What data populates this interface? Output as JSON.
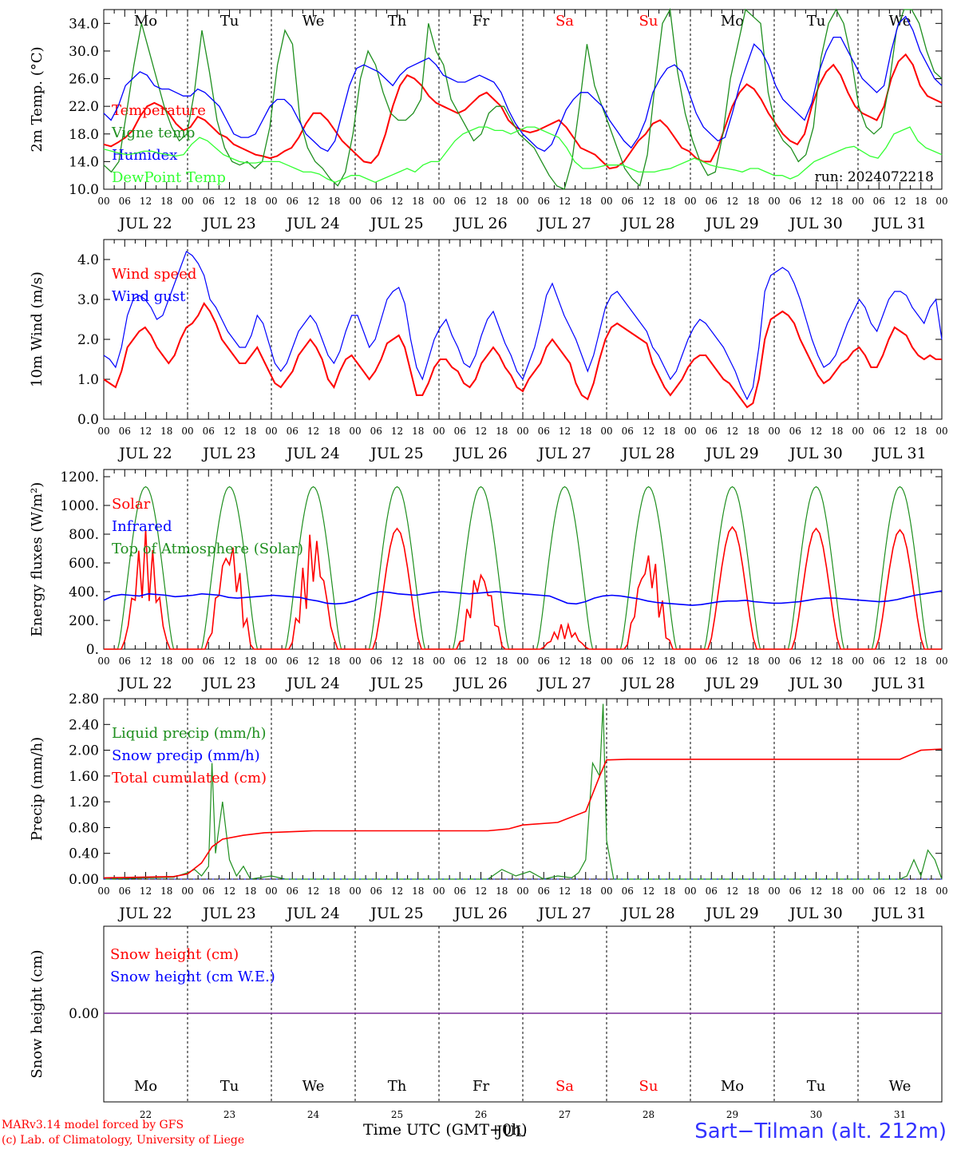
{
  "chart_data": [
    {
      "type": "line",
      "panel_id": "temp",
      "ylabel": "2m Temp. (°C)",
      "ylim": [
        10,
        36
      ],
      "yticks": [
        "10.0",
        "14.0",
        "18.0",
        "22.0",
        "26.0",
        "30.0",
        "34.0"
      ],
      "annotation": "run: 2024072218",
      "series": [
        {
          "name": "Temperature",
          "color": "#ff0000",
          "values": [
            16.5,
            16.2,
            16.8,
            17.5,
            18.5,
            20.5,
            22,
            22.5,
            22,
            21,
            19.5,
            18.5,
            19,
            20.5,
            20,
            19,
            18,
            17.5,
            16.5,
            16,
            15.5,
            15,
            14.8,
            14.5,
            14.8,
            15.5,
            16,
            17.5,
            19.5,
            21,
            21,
            20,
            18.5,
            17,
            16,
            15,
            14,
            13.8,
            15,
            18,
            22,
            25,
            26.5,
            26,
            25,
            23.5,
            22.5,
            22,
            21.5,
            21,
            21.5,
            22.5,
            23.5,
            24,
            23,
            22,
            20,
            19,
            18.5,
            18.2,
            18.5,
            19,
            19.5,
            20,
            19,
            17.5,
            16,
            15.5,
            15,
            14,
            13,
            13.2,
            14,
            15.5,
            17,
            18,
            19.5,
            20,
            19,
            17.5,
            16,
            15.5,
            14.5,
            14,
            14,
            16,
            19,
            22,
            24,
            25.2,
            24.5,
            23,
            21,
            19.5,
            18,
            17,
            16.5,
            18,
            22,
            25,
            27,
            28,
            26.5,
            24,
            22,
            21,
            20.5,
            20,
            22,
            26,
            28.5,
            29.5,
            28,
            25,
            23.5,
            23,
            22.5
          ]
        },
        {
          "name": "Vigne temp",
          "color": "#1f8f1f",
          "values": [
            13.5,
            12.5,
            14,
            21,
            28,
            34,
            30,
            26,
            22,
            19,
            17,
            18,
            24,
            33,
            27,
            20,
            16,
            14,
            13.5,
            14,
            13,
            14,
            19,
            28,
            33,
            31,
            20,
            16,
            14,
            13,
            11.5,
            10.5,
            12.5,
            18,
            26,
            30,
            28,
            24,
            21,
            20,
            20,
            21,
            23,
            34,
            30,
            28,
            23,
            21,
            19,
            17,
            18,
            21,
            22,
            22,
            20,
            18,
            17,
            16,
            14,
            12,
            10.5,
            10,
            14,
            22,
            31,
            25,
            22,
            19,
            16,
            13,
            11.5,
            10.5,
            15,
            25,
            34,
            36,
            27,
            21,
            17,
            14,
            12,
            12.5,
            18,
            26,
            31,
            36,
            35,
            34,
            24,
            19,
            17,
            16,
            14,
            15,
            19,
            29,
            34,
            36,
            34,
            29,
            22,
            19,
            18,
            19,
            25,
            33,
            36,
            36,
            34,
            30,
            27,
            26
          ]
        },
        {
          "name": "Humidex",
          "color": "#0000ff",
          "values": [
            21,
            20,
            22,
            25,
            26,
            27,
            26.5,
            25,
            24.5,
            24.5,
            24,
            23.5,
            23.5,
            24.5,
            24,
            23,
            22,
            20,
            18,
            17.5,
            17.5,
            18,
            20,
            22,
            23,
            23,
            22,
            20,
            18,
            17,
            16,
            15.5,
            17,
            21,
            25,
            27.5,
            28,
            27.5,
            27,
            26,
            25,
            26.5,
            27.5,
            28,
            28.5,
            29,
            28,
            26.5,
            26,
            25.5,
            25.5,
            26,
            26.5,
            26,
            25.5,
            24,
            21.5,
            19.5,
            18,
            17,
            16,
            15.5,
            16.5,
            19,
            21.5,
            23,
            24,
            24,
            23,
            22,
            20,
            18.5,
            17,
            16,
            17.5,
            20,
            24,
            26,
            27.5,
            28,
            27,
            24,
            21,
            19,
            18,
            17,
            17.5,
            21,
            25,
            28,
            31,
            30,
            28,
            25,
            23,
            22,
            21,
            20,
            22.5,
            27,
            30,
            32,
            32,
            30,
            28,
            26,
            25,
            24,
            25,
            30,
            34,
            35,
            33,
            30,
            28,
            26,
            25
          ]
        },
        {
          "name": "DewPoint Temp",
          "color": "#33ff33",
          "values": [
            15.8,
            15.5,
            15.2,
            15,
            15.2,
            15.5,
            15.5,
            15.2,
            15,
            14.8,
            15,
            16.5,
            17.5,
            17,
            16,
            15,
            14.5,
            14,
            13.8,
            13.8,
            14,
            14,
            14,
            13.5,
            13,
            12.5,
            12.5,
            12.2,
            11.5,
            11,
            11.5,
            12,
            12,
            11.5,
            11,
            11.5,
            12,
            12.5,
            13,
            12.5,
            13.5,
            14,
            14,
            15.5,
            17,
            18,
            18.5,
            19,
            19,
            18.5,
            18.5,
            18,
            18.5,
            19,
            19,
            18.5,
            18,
            17.5,
            16,
            14,
            13,
            13,
            13.2,
            13.5,
            13.5,
            13.5,
            13,
            12.5,
            12.5,
            12.5,
            12.8,
            13,
            13.5,
            14,
            14.5,
            14,
            13.5,
            13.2,
            13,
            12.8,
            12.5,
            13,
            13,
            12.5,
            12,
            12,
            11.5,
            12,
            13,
            14,
            14.5,
            15,
            15.5,
            16,
            16.2,
            15.5,
            14.8,
            14.5,
            16,
            18,
            18.5,
            19,
            17,
            16,
            15.5,
            15
          ]
        }
      ]
    },
    {
      "type": "line",
      "panel_id": "wind",
      "ylabel": "10m Wind (m/s)",
      "ylim": [
        0,
        4.5
      ],
      "yticks": [
        "0.0",
        "1.0",
        "2.0",
        "3.0",
        "4.0"
      ],
      "series": [
        {
          "name": "Wind speed",
          "color": "#ff0000",
          "values": [
            1.0,
            0.9,
            0.8,
            1.2,
            1.8,
            2.0,
            2.2,
            2.3,
            2.1,
            1.8,
            1.6,
            1.4,
            1.6,
            2.0,
            2.3,
            2.4,
            2.6,
            2.9,
            2.7,
            2.4,
            2.0,
            1.8,
            1.6,
            1.4,
            1.4,
            1.6,
            1.8,
            1.5,
            1.2,
            0.9,
            0.8,
            1.0,
            1.2,
            1.6,
            1.8,
            2.0,
            1.8,
            1.5,
            1.0,
            0.8,
            1.2,
            1.5,
            1.6,
            1.4,
            1.2,
            1.0,
            1.2,
            1.5,
            1.9,
            2.0,
            2.1,
            1.8,
            1.2,
            0.6,
            0.6,
            0.9,
            1.3,
            1.5,
            1.5,
            1.3,
            1.2,
            0.9,
            0.8,
            1.0,
            1.4,
            1.6,
            1.8,
            1.6,
            1.3,
            1.1,
            0.8,
            0.7,
            1.0,
            1.2,
            1.4,
            1.8,
            2.0,
            1.8,
            1.6,
            1.4,
            0.9,
            0.6,
            0.5,
            0.9,
            1.5,
            2.0,
            2.3,
            2.4,
            2.3,
            2.2,
            2.1,
            2.0,
            1.9,
            1.4,
            1.1,
            0.8,
            0.6,
            0.8,
            1.0,
            1.3,
            1.5,
            1.6,
            1.6,
            1.4,
            1.2,
            1.0,
            0.9,
            0.7,
            0.5,
            0.3,
            0.4,
            1.0,
            2.0,
            2.5,
            2.6,
            2.7,
            2.6,
            2.4,
            2.0,
            1.7,
            1.4,
            1.1,
            0.9,
            1.0,
            1.2,
            1.4,
            1.5,
            1.7,
            1.8,
            1.6,
            1.3,
            1.3,
            1.6,
            2.0,
            2.3,
            2.2,
            2.1,
            1.8,
            1.6,
            1.5,
            1.6,
            1.5,
            1.5
          ]
        },
        {
          "name": "Wind gust",
          "color": "#0000ff",
          "values": [
            1.6,
            1.5,
            1.3,
            1.8,
            2.6,
            3.0,
            3.1,
            3.0,
            2.8,
            2.5,
            2.6,
            3.0,
            3.4,
            3.8,
            4.2,
            4.1,
            3.9,
            3.6,
            3.0,
            2.8,
            2.5,
            2.2,
            2.0,
            1.8,
            1.8,
            2.1,
            2.6,
            2.4,
            1.9,
            1.4,
            1.2,
            1.4,
            1.8,
            2.2,
            2.4,
            2.6,
            2.4,
            2.0,
            1.6,
            1.4,
            1.7,
            2.2,
            2.6,
            2.6,
            2.2,
            1.8,
            2.0,
            2.5,
            3.0,
            3.2,
            3.3,
            2.9,
            2.0,
            1.3,
            1.0,
            1.5,
            2.0,
            2.3,
            2.5,
            2.1,
            1.8,
            1.4,
            1.3,
            1.6,
            2.1,
            2.5,
            2.7,
            2.3,
            1.9,
            1.6,
            1.2,
            1.0,
            1.4,
            1.8,
            2.4,
            3.1,
            3.4,
            3.0,
            2.6,
            2.3,
            2.0,
            1.6,
            1.2,
            1.6,
            2.2,
            2.8,
            3.1,
            3.2,
            3.0,
            2.8,
            2.6,
            2.4,
            2.2,
            1.8,
            1.6,
            1.3,
            1.0,
            1.2,
            1.6,
            2.0,
            2.3,
            2.5,
            2.4,
            2.2,
            2.0,
            1.8,
            1.5,
            1.2,
            0.8,
            0.5,
            0.8,
            1.8,
            3.2,
            3.6,
            3.7,
            3.8,
            3.7,
            3.4,
            3.0,
            2.5,
            2.0,
            1.6,
            1.3,
            1.4,
            1.6,
            2.0,
            2.4,
            2.7,
            3.0,
            2.8,
            2.4,
            2.2,
            2.6,
            3.0,
            3.2,
            3.2,
            3.1,
            2.8,
            2.6,
            2.4,
            2.8,
            3.0,
            2.0
          ]
        }
      ]
    },
    {
      "type": "line",
      "panel_id": "flux",
      "ylabel": "Energy fluxes (W/m²)",
      "ylim": [
        0,
        1250
      ],
      "yticks": [
        "0.",
        "200.",
        "400.",
        "600.",
        "800.",
        "1000.",
        "1200."
      ],
      "series": [
        {
          "name": "Solar",
          "color": "#ff0000",
          "days_peak": [
            830,
            800,
            840,
            840,
            600,
            180,
            720,
            850,
            840,
            830
          ]
        },
        {
          "name": "Infrared",
          "color": "#0000ff",
          "values": [
            340,
            370,
            380,
            375,
            370,
            385,
            380,
            375,
            365,
            370,
            375,
            385,
            380,
            375,
            360,
            355,
            360,
            365,
            370,
            375,
            370,
            365,
            360,
            345,
            335,
            320,
            315,
            320,
            335,
            360,
            385,
            400,
            395,
            385,
            380,
            375,
            385,
            395,
            400,
            395,
            390,
            385,
            390,
            395,
            400,
            395,
            390,
            385,
            380,
            375,
            370,
            345,
            320,
            315,
            330,
            355,
            370,
            375,
            370,
            360,
            350,
            335,
            325,
            320,
            315,
            310,
            305,
            310,
            320,
            330,
            335,
            335,
            340,
            330,
            325,
            320,
            320,
            325,
            330,
            340,
            350,
            355,
            355,
            350,
            345,
            340,
            335,
            330,
            335,
            345,
            360,
            375,
            385,
            395,
            405
          ]
        },
        {
          "name": "Top of Atmosphere (Solar)",
          "color": "#1f8f1f",
          "peak": 1130
        }
      ]
    },
    {
      "type": "line",
      "panel_id": "precip",
      "ylabel": "Precip (mm/h)",
      "ylim": [
        0,
        2.8
      ],
      "yticks": [
        "0.00",
        "0.40",
        "0.80",
        "1.20",
        "1.60",
        "2.00",
        "2.40",
        "2.80"
      ],
      "series": [
        {
          "name": "Liquid precip (mm/h)",
          "color": "#1f8f1f"
        },
        {
          "name": "Snow precip (mm/h)",
          "color": "#0000ff"
        },
        {
          "name": "Total cumulated (cm)",
          "color": "#ff0000"
        }
      ]
    },
    {
      "type": "line",
      "panel_id": "snow",
      "ylabel": "Snow height (cm)",
      "yticks": [
        "0.00"
      ],
      "series": [
        {
          "name": "Snow height (cm)",
          "color": "#ff0000",
          "values": [
            0,
            0
          ]
        },
        {
          "name": "Snow height (cm W.E.)",
          "color": "#0000ff",
          "values": [
            0,
            0
          ]
        }
      ]
    }
  ],
  "x_axis": {
    "hour_ticks": [
      "00",
      "06",
      "12",
      "18"
    ],
    "final_tick": "00",
    "dates": [
      "JUL 22",
      "JUL 23",
      "JUL 24",
      "JUL 25",
      "JUL 26",
      "JUL 27",
      "JUL 28",
      "JUL 29",
      "JUL 30",
      "JUL 31"
    ],
    "weekdays": [
      "Mo",
      "Tu",
      "We",
      "Th",
      "Fr",
      "Sa",
      "Su",
      "Mo",
      "Tu",
      "We"
    ],
    "weekday_colors": [
      "#000000",
      "#000000",
      "#000000",
      "#000000",
      "#000000",
      "#ff0000",
      "#ff0000",
      "#000000",
      "#000000",
      "#000000"
    ],
    "day_numbers": [
      "22",
      "23",
      "24",
      "25",
      "26",
      "27",
      "28",
      "29",
      "30",
      "31"
    ],
    "title": "Time UTC (GMT+0h)",
    "title_overlay": "JUL"
  },
  "footer": {
    "model": "MARv3.14 model forced by GFS",
    "credit": "(c) Lab. of Climatology, University of Liege",
    "station": "Sart−Tilman (alt. 212m)"
  }
}
